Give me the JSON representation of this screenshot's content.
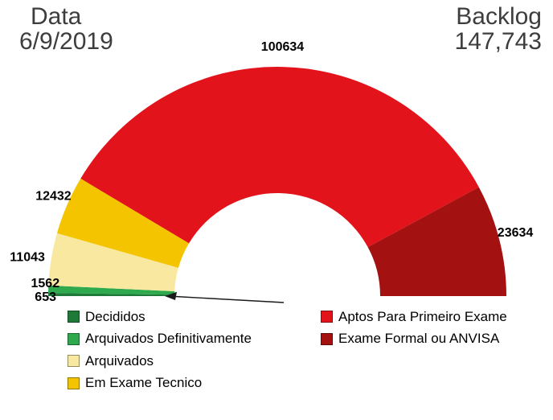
{
  "header": {
    "date_label": "Data",
    "date_value": "6/9/2019",
    "backlog_label": "Backlog",
    "backlog_value": "147,743"
  },
  "chart_data": {
    "type": "pie",
    "variant": "half-donut",
    "start_side": "left",
    "legend_position": "bottom",
    "legend_columns": [
      [
        0,
        1,
        2,
        3
      ],
      [
        4,
        5
      ]
    ],
    "segments": [
      {
        "label": "Decididos",
        "value": 653,
        "color": "#1d7a38"
      },
      {
        "label": "Arquivados Definitivamente",
        "value": 1562,
        "color": "#2fa94d"
      },
      {
        "label": "Arquivados",
        "value": 11043,
        "color": "#f8e8a0"
      },
      {
        "label": "Em Exame Tecnico",
        "value": 12432,
        "color": "#f5c400"
      },
      {
        "label": "Aptos Para Primeiro Exame",
        "value": 100634,
        "color": "#e2131b"
      },
      {
        "label": "Exame Formal ou ANVISA",
        "value": 23634,
        "color": "#a31111"
      }
    ]
  }
}
